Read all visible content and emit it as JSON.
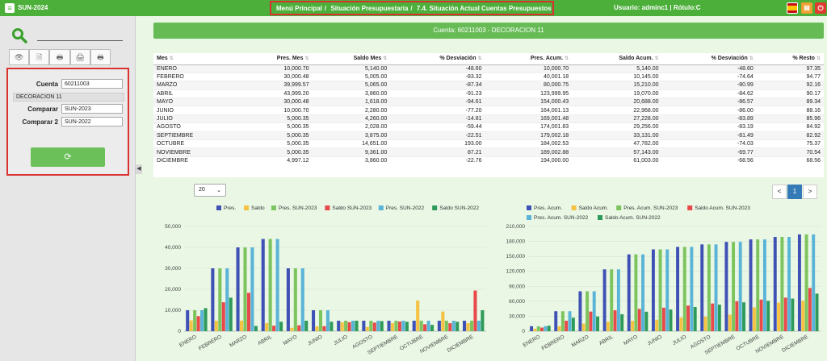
{
  "topbar": {
    "menu_icon": "hamburger-icon",
    "app_name": "SUN-2024",
    "breadcrumb": [
      "Menú Principal",
      "Situación Presupuestaria",
      "7.4. Situación Actual Cuentas Presupuestos"
    ],
    "separators": [
      "/",
      "/"
    ],
    "user": "Usuario: adminc1 | Rótulo:C",
    "print_icon": "print-icon",
    "power_icon": "power-icon"
  },
  "sidebar": {
    "search_icon": "search-icon",
    "toolbar_icons": [
      "eye-icon",
      "document-icon",
      "print-icon",
      "printer-icon",
      "pdf-print-icon"
    ],
    "toolbar_glyphs": [
      "👁",
      "🗎",
      "🖶",
      "🖨",
      "🖶"
    ],
    "cuenta_label": "Cuenta",
    "cuenta_value": "60211003",
    "cuenta_desc": "DECORACION 11",
    "comparar_label": "Comparar",
    "comparar_value": "SUN-2023",
    "comparar2_label": "Comparar 2",
    "comparar2_value": "SUN-2022",
    "refresh_glyph": "⟳"
  },
  "cuenta_bar": "Cuenta: 60211003 - DECORACION 11",
  "table": {
    "headers": [
      "Mes",
      "Pres. Mes",
      "Saldo Mes",
      "% Desviación",
      "Pres. Acum.",
      "Saldo Acum.",
      "% Desviación",
      "% Resto"
    ],
    "rows": [
      [
        "ENERO",
        "10,000.70",
        "5,140.00",
        "-48.60",
        "10,000.70",
        "5,140.00",
        "-48.60",
        "97.35"
      ],
      [
        "FEBRERO",
        "30,000.48",
        "5,005.00",
        "-83.32",
        "40,001.18",
        "10,145.00",
        "-74.64",
        "94.77"
      ],
      [
        "MARZO",
        "39,999.57",
        "5,065.00",
        "-87.34",
        "80,000.75",
        "15,210.00",
        "-80.99",
        "92.16"
      ],
      [
        "ABRIL",
        "43,999.20",
        "3,860.00",
        "-91.23",
        "123,999.95",
        "19,070.00",
        "-84.62",
        "90.17"
      ],
      [
        "MAYO",
        "30,000.48",
        "1,618.00",
        "-94.61",
        "154,000.43",
        "20,688.00",
        "-86.57",
        "89.34"
      ],
      [
        "JUNIO",
        "10,000.70",
        "2,280.00",
        "-77.20",
        "164,001.13",
        "22,968.00",
        "-86.00",
        "88.16"
      ],
      [
        "JULIO",
        "5,000.35",
        "4,260.00",
        "-14.81",
        "169,001.48",
        "27,228.00",
        "-83.89",
        "85.96"
      ],
      [
        "AGOSTO",
        "5,000.35",
        "2,028.00",
        "-59.44",
        "174,001.83",
        "29,256.00",
        "-83.19",
        "84.92"
      ],
      [
        "SEPTIEMBRE",
        "5,000.35",
        "3,875.00",
        "-22.51",
        "179,002.18",
        "33,131.00",
        "-81.49",
        "82.92"
      ],
      [
        "OCTUBRE",
        "5,000.35",
        "14,651.00",
        "193.00",
        "184,002.53",
        "47,782.00",
        "-74.03",
        "75.37"
      ],
      [
        "NOVIEMBRE",
        "5,000.35",
        "9,361.00",
        "87.21",
        "189,002.88",
        "57,143.00",
        "-69.77",
        "70.54"
      ],
      [
        "DICIEMBRE",
        "4,997.12",
        "3,860.00",
        "-22.76",
        "194,000.00",
        "61,003.00",
        "-68.56",
        "68.56"
      ]
    ]
  },
  "page_size": "20",
  "pager": {
    "prev": "<",
    "current": "1",
    "next": ">"
  },
  "colors": {
    "brand": "#4caf3a",
    "bar": "#66bb55",
    "highlight": "#d93030"
  },
  "chart_data": [
    {
      "type": "bar",
      "categories": [
        "ENERO",
        "FEBRERO",
        "MARZO",
        "ABRIL",
        "MAYO",
        "JUNIO",
        "JULIO",
        "AGOSTO",
        "SEPTIEMBRE",
        "OCTUBRE",
        "NOVIEMBRE",
        "DICIEMBRE"
      ],
      "ylim": [
        0,
        50000
      ],
      "yticks": [
        0,
        10000,
        20000,
        30000,
        40000,
        50000
      ],
      "ytick_labels": [
        "0",
        "10,000",
        "20,000",
        "30,000",
        "40,000",
        "50,000"
      ],
      "legend_position": "top",
      "grid": true,
      "series": [
        {
          "name": "Pres.",
          "color": "#3f51b5",
          "values": [
            10000.7,
            30000.48,
            39999.57,
            43999.2,
            30000.48,
            10000.7,
            5000.35,
            5000.35,
            5000.35,
            5000.35,
            5000.35,
            4997.12
          ]
        },
        {
          "name": "Saldo",
          "color": "#f5c243",
          "values": [
            5140,
            5005,
            5065,
            3860,
            1618,
            2280,
            4260,
            2028,
            3875,
            14651,
            9361,
            3860
          ]
        },
        {
          "name": "Pres. SUN-2023",
          "color": "#7cc45e",
          "values": [
            10000,
            30000,
            40000,
            44000,
            30000,
            10000,
            5000,
            5000,
            5000,
            5000,
            5000,
            5000
          ]
        },
        {
          "name": "Saldo SUN-2023",
          "color": "#e84a4a",
          "values": [
            7200,
            13800,
            18300,
            2600,
            2800,
            2400,
            4300,
            4100,
            4600,
            3300,
            3800,
            19400
          ]
        },
        {
          "name": "Pres. SUN-2022",
          "color": "#5ab4d8",
          "values": [
            10000,
            30000,
            40000,
            44000,
            30000,
            10000,
            5000,
            5000,
            5000,
            5000,
            5000,
            5000
          ]
        },
        {
          "name": "Saldo SUN-2022",
          "color": "#2e9a5a",
          "values": [
            11000,
            16000,
            2500,
            4500,
            5000,
            4500,
            5000,
            4800,
            4500,
            3000,
            4500,
            10000
          ]
        }
      ]
    },
    {
      "type": "bar",
      "categories": [
        "ENERO",
        "FEBRERO",
        "MARZO",
        "ABRIL",
        "MAYO",
        "JUNIO",
        "JULIO",
        "AGOSTO",
        "SEPTIEMBRE",
        "OCTUBRE",
        "NOVIEMBRE",
        "DICIEMBRE"
      ],
      "ylim": [
        0,
        210000
      ],
      "yticks": [
        0,
        30000,
        60000,
        90000,
        120000,
        150000,
        180000,
        210000
      ],
      "ytick_labels": [
        "0",
        "30,000",
        "60,000",
        "90,000",
        "120,000",
        "150,000",
        "180,000",
        "210,000"
      ],
      "legend_position": "top",
      "grid": true,
      "series": [
        {
          "name": "Pres. Acum.",
          "color": "#3f51b5",
          "values": [
            10000.7,
            40001.18,
            80000.75,
            123999.95,
            154000.43,
            164001.13,
            169001.48,
            174001.83,
            179002.18,
            184002.53,
            189002.88,
            194000
          ]
        },
        {
          "name": "Saldo Acum.",
          "color": "#f5c243",
          "values": [
            5140,
            10145,
            15210,
            19070,
            20688,
            22968,
            27228,
            29256,
            33131,
            47782,
            57143,
            61003
          ]
        },
        {
          "name": "Pres. Acum. SUN-2023",
          "color": "#7cc45e",
          "values": [
            10000,
            40000,
            80000,
            124000,
            154000,
            164000,
            169000,
            174000,
            179000,
            184000,
            189000,
            194000
          ]
        },
        {
          "name": "Saldo Acum. SUN-2023",
          "color": "#e84a4a",
          "values": [
            7200,
            21000,
            39300,
            41900,
            44700,
            47100,
            51400,
            55500,
            60100,
            63400,
            67200,
            86600
          ]
        },
        {
          "name": "Pres. Acum. SUN-2022",
          "color": "#5ab4d8",
          "values": [
            10000,
            40000,
            80000,
            124000,
            154000,
            164000,
            169000,
            174000,
            179000,
            184000,
            189000,
            194000
          ]
        },
        {
          "name": "Saldo Acum. SUN-2022",
          "color": "#2e9a5a",
          "values": [
            11000,
            27000,
            29500,
            34000,
            39000,
            43500,
            48500,
            53300,
            57800,
            60800,
            65300,
            75300
          ]
        }
      ]
    }
  ]
}
